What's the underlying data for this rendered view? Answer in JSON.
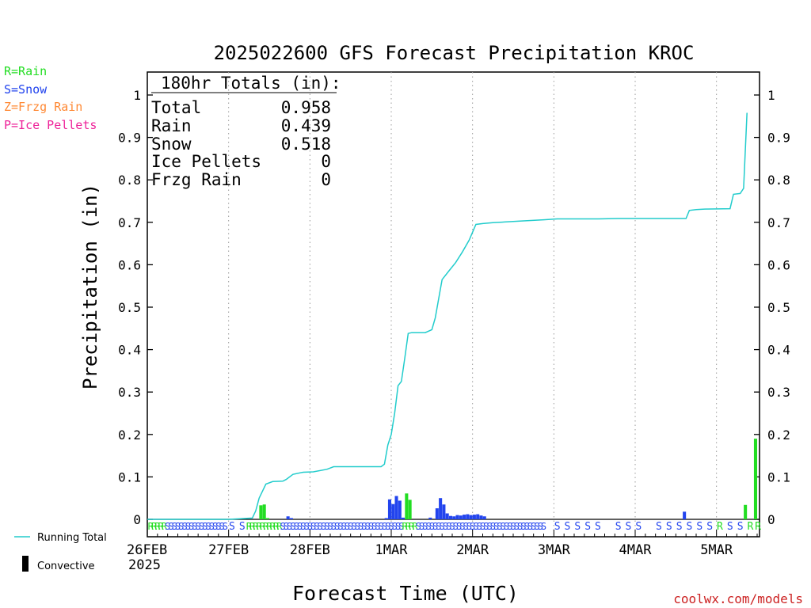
{
  "title": "2025022600 GFS Forecast Precipitation KROC",
  "xlabel": "Forecast Time (UTC)",
  "ylabel": "Precipitation (in)",
  "watermark": "coolwx.com/models",
  "ptype_legend": [
    {
      "label": "R=Rain",
      "color": "#22dd22"
    },
    {
      "label": "S=Snow",
      "color": "#2244ee"
    },
    {
      "label": "Z=Frzg Rain",
      "color": "#ff8833"
    },
    {
      "label": "P=Ice Pellets",
      "color": "#ee2299"
    }
  ],
  "line_legend": {
    "running": "Running Total",
    "convective": "Convective"
  },
  "totals": {
    "header": "180hr Totals (in):",
    "rows": [
      {
        "label": "Total",
        "value": "0.958"
      },
      {
        "label": "Rain",
        "value": "0.439"
      },
      {
        "label": "Snow",
        "value": "0.518"
      },
      {
        "label": "Ice Pellets",
        "value": "0"
      },
      {
        "label": "Frzg Rain",
        "value": "0"
      }
    ]
  },
  "colors": {
    "running": "#22cccc",
    "rain": "#22dd22",
    "snow": "#2244ee",
    "convective": "#000000",
    "watermark": "#cc2222"
  },
  "chart_data": {
    "type": "bar",
    "title": "2025022600 GFS Forecast Precipitation KROC",
    "xlabel": "Forecast Time (UTC)",
    "ylabel": "Precipitation (in)",
    "xlim_hours": [
      0,
      180
    ],
    "ylim": [
      0,
      1.05
    ],
    "yticks": [
      0,
      0.1,
      0.2,
      0.3,
      0.4,
      0.5,
      0.6,
      0.7,
      0.8,
      0.9,
      1
    ],
    "ytick_labels": [
      "0",
      "0.1",
      "0.2",
      "0.3",
      "0.4",
      "0.5",
      "0.6",
      "0.7",
      "0.8",
      "0.9",
      "1"
    ],
    "xticks": [
      {
        "hour": 0,
        "label": "26FEB"
      },
      {
        "hour": 24,
        "label": "27FEB"
      },
      {
        "hour": 48,
        "label": "28FEB"
      },
      {
        "hour": 72,
        "label": "1MAR"
      },
      {
        "hour": 96,
        "label": "2MAR"
      },
      {
        "hour": 120,
        "label": "3MAR"
      },
      {
        "hour": 144,
        "label": "4MAR"
      },
      {
        "hour": 168,
        "label": "5MAR"
      }
    ],
    "year_label": "2025",
    "grid": "vertical dotted",
    "running_total": {
      "name": "Running Total",
      "hours": [
        0,
        24,
        31,
        32,
        33,
        35,
        37,
        40,
        41,
        43,
        46,
        49,
        53,
        55,
        58,
        60,
        65,
        69,
        70,
        71,
        72,
        73,
        74,
        75,
        76,
        77,
        78,
        80,
        82,
        84,
        85,
        86,
        87,
        89,
        91,
        93,
        95,
        97,
        99,
        102,
        110,
        117,
        121,
        133,
        139,
        148,
        159,
        160,
        162,
        164,
        172,
        173,
        175,
        176,
        177
      ],
      "values": [
        0.0,
        0.0,
        0.003,
        0.02,
        0.05,
        0.083,
        0.089,
        0.09,
        0.094,
        0.106,
        0.111,
        0.112,
        0.118,
        0.124,
        0.124,
        0.124,
        0.124,
        0.124,
        0.13,
        0.175,
        0.2,
        0.25,
        0.315,
        0.325,
        0.38,
        0.438,
        0.44,
        0.44,
        0.44,
        0.447,
        0.475,
        0.52,
        0.565,
        0.585,
        0.605,
        0.63,
        0.658,
        0.695,
        0.697,
        0.699,
        0.703,
        0.706,
        0.708,
        0.708,
        0.709,
        0.709,
        0.709,
        0.728,
        0.73,
        0.731,
        0.732,
        0.766,
        0.768,
        0.78,
        0.958
      ]
    },
    "bars": [
      {
        "hour": 34,
        "value": 0.033,
        "type": "rain"
      },
      {
        "hour": 35,
        "value": 0.035,
        "type": "rain"
      },
      {
        "hour": 36,
        "value": 0.003,
        "type": "rain"
      },
      {
        "hour": 42,
        "value": 0.007,
        "type": "snow"
      },
      {
        "hour": 43,
        "value": 0.003,
        "type": "snow"
      },
      {
        "hour": 71,
        "value": 0.003,
        "type": "snow"
      },
      {
        "hour": 72,
        "value": 0.047,
        "type": "snow"
      },
      {
        "hour": 73,
        "value": 0.036,
        "type": "snow"
      },
      {
        "hour": 74,
        "value": 0.055,
        "type": "snow"
      },
      {
        "hour": 75,
        "value": 0.044,
        "type": "snow"
      },
      {
        "hour": 76,
        "value": 0.004,
        "type": "snow"
      },
      {
        "hour": 77,
        "value": 0.061,
        "type": "rain"
      },
      {
        "hour": 78,
        "value": 0.046,
        "type": "rain"
      },
      {
        "hour": 84,
        "value": 0.004,
        "type": "snow"
      },
      {
        "hour": 86,
        "value": 0.026,
        "type": "snow"
      },
      {
        "hour": 87,
        "value": 0.05,
        "type": "snow"
      },
      {
        "hour": 88,
        "value": 0.035,
        "type": "snow"
      },
      {
        "hour": 89,
        "value": 0.014,
        "type": "snow"
      },
      {
        "hour": 90,
        "value": 0.008,
        "type": "snow"
      },
      {
        "hour": 91,
        "value": 0.007,
        "type": "snow"
      },
      {
        "hour": 92,
        "value": 0.01,
        "type": "snow"
      },
      {
        "hour": 93,
        "value": 0.009,
        "type": "snow"
      },
      {
        "hour": 94,
        "value": 0.011,
        "type": "snow"
      },
      {
        "hour": 95,
        "value": 0.012,
        "type": "snow"
      },
      {
        "hour": 96,
        "value": 0.01,
        "type": "snow"
      },
      {
        "hour": 97,
        "value": 0.011,
        "type": "snow"
      },
      {
        "hour": 98,
        "value": 0.012,
        "type": "snow"
      },
      {
        "hour": 99,
        "value": 0.009,
        "type": "snow"
      },
      {
        "hour": 100,
        "value": 0.007,
        "type": "snow"
      },
      {
        "hour": 159,
        "value": 0.018,
        "type": "snow"
      },
      {
        "hour": 177,
        "value": 0.034,
        "type": "rain"
      },
      {
        "hour": 180,
        "value": 0.19,
        "type": "rain"
      }
    ],
    "ptype_dense": [
      {
        "hours": [
          1,
          6
        ],
        "char": "R",
        "type": "rain"
      },
      {
        "hours": [
          6,
          24
        ],
        "char": "S",
        "type": "snow"
      },
      {
        "hours": [
          30,
          40
        ],
        "char": "R",
        "type": "rain"
      },
      {
        "hours": [
          40,
          76
        ],
        "char": "S",
        "type": "snow"
      },
      {
        "hours": [
          76,
          80
        ],
        "char": "R",
        "type": "rain"
      },
      {
        "hours": [
          80,
          118
        ],
        "char": "S",
        "type": "snow"
      }
    ],
    "ptype_sparse": [
      {
        "hour": 25,
        "char": "S",
        "type": "snow"
      },
      {
        "hour": 28,
        "char": "S",
        "type": "snow"
      },
      {
        "hour": 121,
        "char": "S",
        "type": "snow"
      },
      {
        "hour": 124,
        "char": "S",
        "type": "snow"
      },
      {
        "hour": 127,
        "char": "S",
        "type": "snow"
      },
      {
        "hour": 130,
        "char": "S",
        "type": "snow"
      },
      {
        "hour": 133,
        "char": "S",
        "type": "snow"
      },
      {
        "hour": 139,
        "char": "S",
        "type": "snow"
      },
      {
        "hour": 142,
        "char": "S",
        "type": "snow"
      },
      {
        "hour": 145,
        "char": "S",
        "type": "snow"
      },
      {
        "hour": 151,
        "char": "S",
        "type": "snow"
      },
      {
        "hour": 154,
        "char": "S",
        "type": "snow"
      },
      {
        "hour": 157,
        "char": "S",
        "type": "snow"
      },
      {
        "hour": 160,
        "char": "S",
        "type": "snow"
      },
      {
        "hour": 163,
        "char": "S",
        "type": "snow"
      },
      {
        "hour": 166,
        "char": "S",
        "type": "snow"
      },
      {
        "hour": 169,
        "char": "R",
        "type": "rain"
      },
      {
        "hour": 172,
        "char": "S",
        "type": "snow"
      },
      {
        "hour": 175,
        "char": "S",
        "type": "snow"
      },
      {
        "hour": 178,
        "char": "R",
        "type": "rain"
      },
      {
        "hour": 181,
        "char": "R",
        "type": "rain"
      }
    ]
  }
}
